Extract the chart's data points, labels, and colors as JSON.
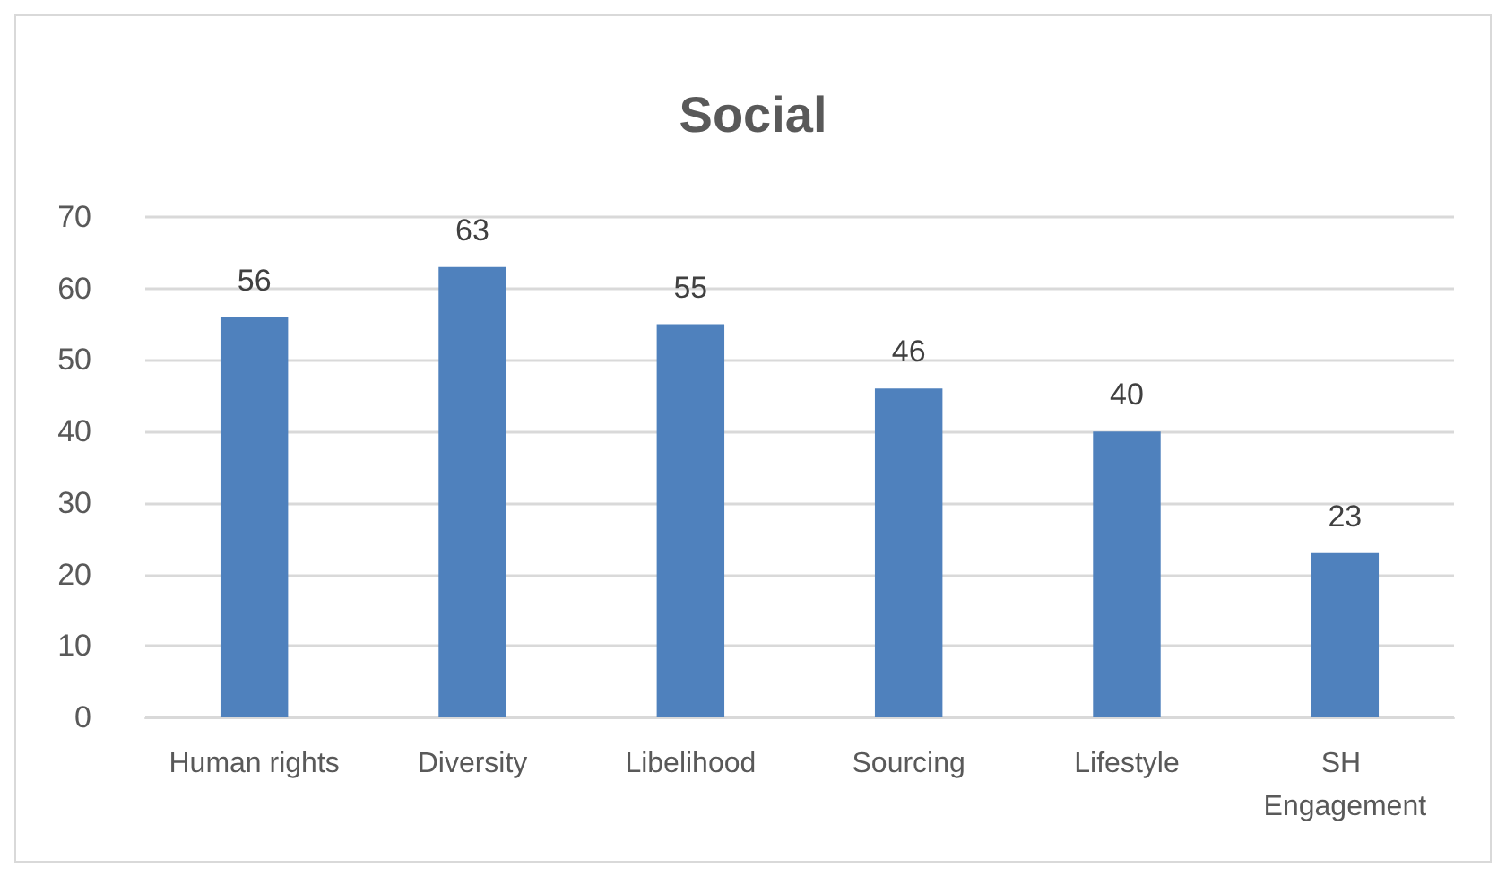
{
  "chart_data": {
    "type": "bar",
    "title": "Social",
    "categories": [
      "Human rights",
      "Diversity",
      "Libelihood",
      "Sourcing",
      "Lifestyle",
      "SH Engagement"
    ],
    "values": [
      56,
      63,
      55,
      46,
      40,
      23
    ],
    "color": "#4f81bd",
    "ylim": [
      0,
      70
    ],
    "yticks": [
      0,
      10,
      20,
      30,
      40,
      50,
      60,
      70
    ],
    "grid": "y",
    "data_labels": true
  }
}
